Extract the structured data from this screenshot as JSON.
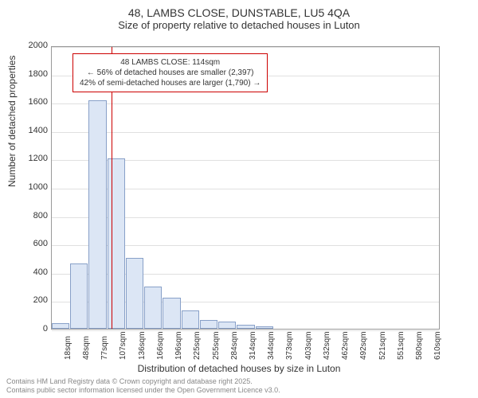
{
  "title": {
    "line1": "48, LAMBS CLOSE, DUNSTABLE, LU5 4QA",
    "line2": "Size of property relative to detached houses in Luton",
    "fontsize_line1": 14,
    "fontsize_line2": 13
  },
  "chart": {
    "type": "bar",
    "ylim": [
      0,
      2000
    ],
    "ytick_step": 200,
    "yticks": [
      0,
      200,
      400,
      600,
      800,
      1000,
      1200,
      1400,
      1600,
      1800,
      2000
    ],
    "ylabel": "Number of detached properties",
    "xlabel": "Distribution of detached houses by size in Luton",
    "categories": [
      "18sqm",
      "48sqm",
      "77sqm",
      "107sqm",
      "136sqm",
      "166sqm",
      "196sqm",
      "225sqm",
      "255sqm",
      "284sqm",
      "314sqm",
      "344sqm",
      "373sqm",
      "403sqm",
      "432sqm",
      "462sqm",
      "492sqm",
      "521sqm",
      "551sqm",
      "580sqm",
      "610sqm"
    ],
    "values": [
      40,
      460,
      1610,
      1200,
      500,
      300,
      220,
      130,
      60,
      50,
      30,
      15,
      0,
      0,
      0,
      0,
      0,
      0,
      0,
      0,
      0
    ],
    "bar_color": "#dce6f5",
    "bar_border_color": "#88a0c8",
    "grid_color": "#e0e0e0",
    "background_color": "#ffffff",
    "marker_line": {
      "value_sqm": 114,
      "color": "#cc0000"
    },
    "annotation": {
      "line1": "48 LAMBS CLOSE: 114sqm",
      "line2": "← 56% of detached houses are smaller (2,397)",
      "line3": "42% of semi-detached houses are larger (1,790) →",
      "border_color": "#cc0000"
    }
  },
  "footer": {
    "line1": "Contains HM Land Registry data © Crown copyright and database right 2025.",
    "line2": "Contains public sector information licensed under the Open Government Licence v3.0."
  }
}
